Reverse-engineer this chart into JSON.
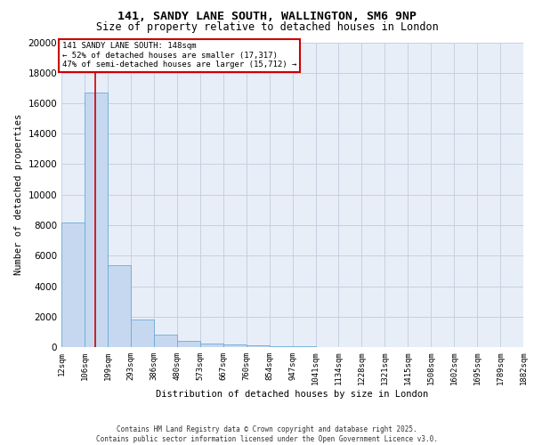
{
  "title_line1": "141, SANDY LANE SOUTH, WALLINGTON, SM6 9NP",
  "title_line2": "Size of property relative to detached houses in London",
  "xlabel": "Distribution of detached houses by size in London",
  "ylabel": "Number of detached properties",
  "bin_edges": [
    12,
    106,
    199,
    293,
    386,
    480,
    573,
    667,
    760,
    854,
    947,
    1041,
    1134,
    1228,
    1321,
    1415,
    1508,
    1602,
    1695,
    1789,
    1882
  ],
  "bar_heights": [
    8200,
    16700,
    5400,
    1800,
    800,
    400,
    250,
    150,
    100,
    60,
    40,
    25,
    15,
    10,
    8,
    5,
    4,
    3,
    2,
    1
  ],
  "bar_color": "#c6d8ef",
  "bar_edge_color": "#6aaad4",
  "property_size": 148,
  "red_line_color": "#cc0000",
  "annotation_text": "141 SANDY LANE SOUTH: 148sqm\n← 52% of detached houses are smaller (17,317)\n47% of semi-detached houses are larger (15,712) →",
  "annotation_box_color": "#ffffff",
  "annotation_box_edge_color": "#cc0000",
  "ylim": [
    0,
    20000
  ],
  "yticks": [
    0,
    2000,
    4000,
    6000,
    8000,
    10000,
    12000,
    14000,
    16000,
    18000,
    20000
  ],
  "grid_color": "#c8d0e0",
  "background_color": "#e8eef8",
  "footer_line1": "Contains HM Land Registry data © Crown copyright and database right 2025.",
  "footer_line2": "Contains public sector information licensed under the Open Government Licence v3.0.",
  "title_fontsize": 9.5,
  "subtitle_fontsize": 8.5,
  "tick_label_fontsize": 6.5,
  "ylabel_fontsize": 7.5,
  "xlabel_fontsize": 7.5
}
